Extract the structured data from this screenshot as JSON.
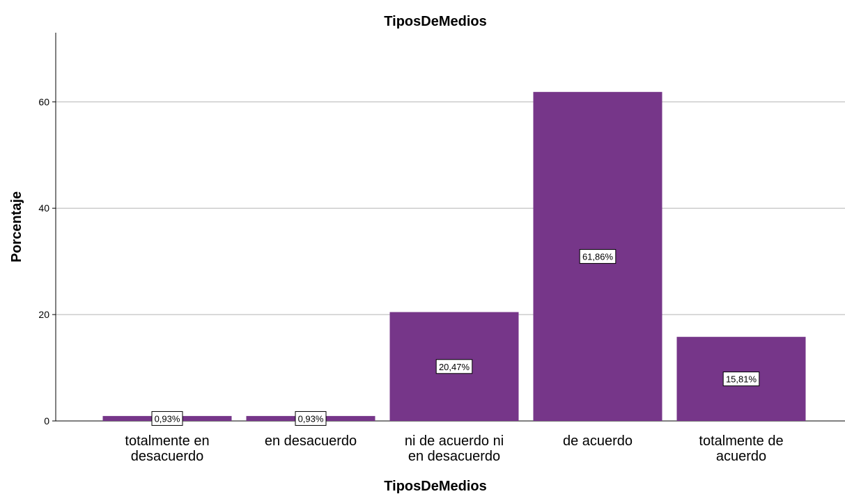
{
  "chart_data": {
    "type": "bar",
    "title": "TiposDeMedios",
    "xlabel": "TiposDeMedios",
    "ylabel": "Porcentaje",
    "categories": [
      [
        "totalmente en",
        "desacuerdo"
      ],
      [
        "en desacuerdo"
      ],
      [
        "ni de acuerdo ni",
        "en desacuerdo"
      ],
      [
        "de acuerdo"
      ],
      [
        "totalmente de",
        "acuerdo"
      ]
    ],
    "values": [
      0.93,
      0.93,
      20.47,
      61.86,
      15.81
    ],
    "data_labels": [
      "0,93%",
      "0,93%",
      "20,47%",
      "61,86%",
      "15,81%"
    ],
    "y_ticks": [
      0,
      20,
      40,
      60
    ],
    "ylim": [
      0,
      73
    ],
    "grid": "horizontal",
    "bar_color": "#763689"
  }
}
